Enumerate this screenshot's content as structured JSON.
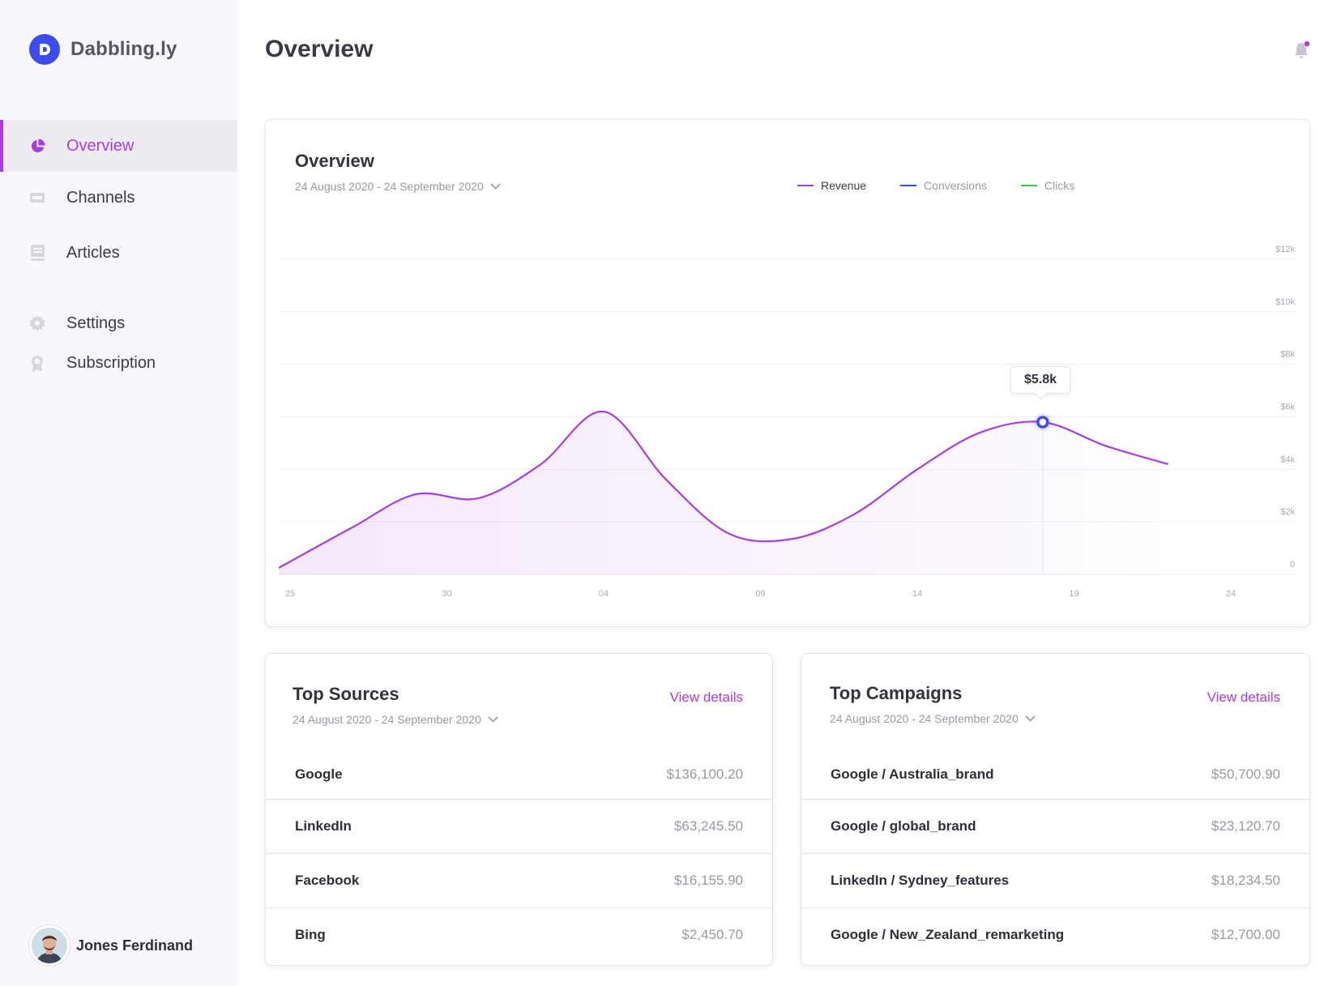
{
  "brand": {
    "name": "Dabbling.ly",
    "logo_letter": "D",
    "accent": "#a63ee0",
    "logo_color": "#3b4cf0"
  },
  "sidebar": {
    "items": [
      {
        "label": "Overview",
        "icon": "pie-chart-icon",
        "active": true
      },
      {
        "label": "Channels",
        "icon": "channels-icon",
        "active": false
      },
      {
        "label": "Articles",
        "icon": "articles-icon",
        "active": false
      },
      {
        "label": "Settings",
        "icon": "gear-icon",
        "active": false
      },
      {
        "label": "Subscription",
        "icon": "badge-icon",
        "active": false
      }
    ],
    "user": {
      "name": "Jones Ferdinand"
    }
  },
  "header": {
    "title": "Overview",
    "notification_icon": "bell-icon"
  },
  "overview_card": {
    "title": "Overview",
    "date_range": "24 August 2020 - 24 September 2020",
    "legend": [
      {
        "label": "Revenue",
        "color": "#a63ee0"
      },
      {
        "label": "Conversions",
        "color": "#3b4cf0"
      },
      {
        "label": "Clicks",
        "color": "#2ed14f"
      }
    ],
    "tooltip": "$5.8k"
  },
  "chart_data": {
    "type": "area",
    "title": "Overview",
    "series": [
      {
        "name": "Revenue",
        "x": [
          25,
          27,
          29,
          31,
          2,
          4,
          6,
          8,
          10,
          12,
          14,
          16,
          18,
          20,
          22
        ],
        "values": [
          250,
          1800,
          3050,
          2900,
          4200,
          6200,
          3600,
          1550,
          1350,
          2300,
          4000,
          5400,
          5800,
          4900,
          4200
        ]
      }
    ],
    "x_tick_labels": [
      "25",
      "30",
      "04",
      "09",
      "14",
      "19",
      "24"
    ],
    "y_tick_labels": [
      "0",
      "$2k",
      "$4k",
      "$6k",
      "$8k",
      "$10k",
      "$12k"
    ],
    "ylim": [
      0,
      12000
    ],
    "highlight": {
      "x": 18,
      "value": 5800,
      "label": "$5.8k"
    },
    "grid": true,
    "y_axis_side": "right"
  },
  "top_sources": {
    "title": "Top Sources",
    "date_range": "24 August 2020 - 24 September 2020",
    "view_details": "View details",
    "rows": [
      {
        "name": "Google",
        "value": "$136,100.20"
      },
      {
        "name": "LinkedIn",
        "value": "$63,245.50"
      },
      {
        "name": "Facebook",
        "value": "$16,155.90"
      },
      {
        "name": "Bing",
        "value": "$2,450.70"
      }
    ]
  },
  "top_campaigns": {
    "title": "Top Campaigns",
    "date_range": "24 August 2020 - 24 September 2020",
    "view_details": "View details",
    "rows": [
      {
        "name": "Google / Australia_brand",
        "value": "$50,700.90"
      },
      {
        "name": "Google / global_brand",
        "value": "$23,120.70"
      },
      {
        "name": "LinkedIn / Sydney_features",
        "value": "$18,234.50"
      },
      {
        "name": "Google / New_Zealand_remarketing",
        "value": "$12,700.00"
      }
    ]
  }
}
